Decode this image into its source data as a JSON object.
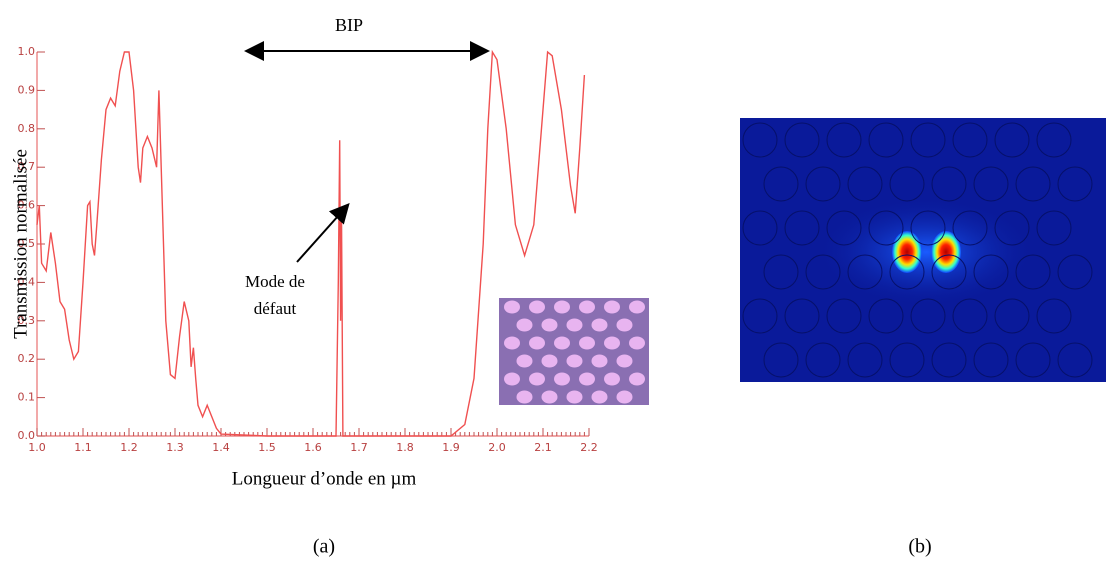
{
  "chart_data": {
    "type": "line",
    "x_label": "Longueur d’onde en µm",
    "y_label": "Transmission normalisée",
    "annotations": {
      "band_gap": "BIP",
      "defect_line1": "Mode de",
      "defect_line2": "défaut"
    },
    "panel_labels": [
      "(a)",
      "(b)"
    ],
    "color": "#f05050",
    "xlim": [
      1.0,
      2.2
    ],
    "ylim": [
      0,
      1.0
    ],
    "xticks": [
      {
        "value": 1.0,
        "label": "1.0"
      },
      1.1,
      1.2,
      1.3,
      1.4,
      1.5,
      1.6,
      1.7,
      1.8,
      1.9,
      {
        "value": 2.0,
        "label": "2.0"
      },
      2.1,
      2.2
    ],
    "yticks": [
      {
        "value": 0,
        "label": "0.0"
      },
      0.1,
      0.2,
      0.3,
      0.4,
      0.5,
      0.6,
      0.7,
      0.8,
      0.9,
      {
        "value": 1.0,
        "label": "1.0"
      }
    ],
    "x": [
      1.0,
      1.005,
      1.01,
      1.02,
      1.03,
      1.04,
      1.05,
      1.06,
      1.07,
      1.08,
      1.09,
      1.1,
      1.11,
      1.115,
      1.12,
      1.125,
      1.13,
      1.14,
      1.15,
      1.16,
      1.17,
      1.18,
      1.19,
      1.2,
      1.21,
      1.22,
      1.225,
      1.23,
      1.24,
      1.25,
      1.26,
      1.265,
      1.27,
      1.28,
      1.29,
      1.3,
      1.31,
      1.32,
      1.33,
      1.335,
      1.34,
      1.345,
      1.35,
      1.36,
      1.37,
      1.38,
      1.39,
      1.4,
      1.5,
      1.6,
      1.65,
      1.655,
      1.658,
      1.66,
      1.662,
      1.665,
      1.7,
      1.8,
      1.9,
      1.93,
      1.95,
      1.97,
      1.98,
      1.99,
      2.0,
      2.02,
      2.04,
      2.06,
      2.08,
      2.1,
      2.11,
      2.12,
      2.14,
      2.16,
      2.17,
      2.18,
      2.19
    ],
    "values": [
      0.55,
      0.6,
      0.45,
      0.43,
      0.53,
      0.45,
      0.35,
      0.33,
      0.25,
      0.2,
      0.22,
      0.4,
      0.6,
      0.61,
      0.5,
      0.47,
      0.55,
      0.72,
      0.85,
      0.88,
      0.86,
      0.95,
      1.0,
      1.0,
      0.9,
      0.7,
      0.66,
      0.75,
      0.78,
      0.75,
      0.7,
      0.9,
      0.7,
      0.3,
      0.16,
      0.15,
      0.26,
      0.35,
      0.3,
      0.18,
      0.23,
      0.15,
      0.08,
      0.05,
      0.08,
      0.05,
      0.02,
      0.005,
      0.0,
      0.0,
      0.0,
      0.4,
      0.77,
      0.3,
      0.58,
      0.0,
      0.0,
      0.0,
      0.0,
      0.03,
      0.15,
      0.5,
      0.8,
      1.0,
      0.98,
      0.8,
      0.55,
      0.47,
      0.55,
      0.85,
      1.0,
      0.99,
      0.85,
      0.65,
      0.58,
      0.75,
      0.94
    ]
  }
}
